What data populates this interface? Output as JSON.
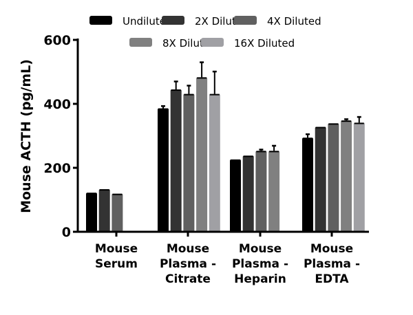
{
  "chart_data": {
    "type": "bar",
    "title": "",
    "xlabel": "",
    "ylabel": "Mouse ACTH (pg/mL)",
    "ylim": [
      0,
      600
    ],
    "yticks": [
      0,
      200,
      400,
      600
    ],
    "grid": false,
    "legend_placement": "top",
    "categories": [
      [
        "Mouse",
        "Serum"
      ],
      [
        "Mouse",
        "Plasma -",
        "Citrate"
      ],
      [
        "Mouse",
        "Plasma -",
        "Heparin"
      ],
      [
        "Mouse",
        "Plasma -",
        "EDTA"
      ]
    ],
    "series": [
      {
        "name": "Undiluted",
        "color": "#000000",
        "values": [
          122,
          386,
          226,
          294
        ],
        "errors": [
          0,
          7,
          0,
          11
        ]
      },
      {
        "name": "2X Diluted",
        "color": "#333333",
        "values": [
          133,
          445,
          238,
          328
        ],
        "errors": [
          0,
          25,
          0,
          0
        ]
      },
      {
        "name": "4X Diluted",
        "color": "#606060",
        "values": [
          119,
          431,
          253,
          339
        ],
        "errors": [
          0,
          26,
          4,
          0
        ]
      },
      {
        "name": "8X Diluted",
        "color": "#808080",
        "values": [
          null,
          483,
          253,
          348
        ],
        "errors": [
          0,
          47,
          16,
          4
        ]
      },
      {
        "name": "16X Diluted",
        "color": "#a0a0a4",
        "values": [
          null,
          431,
          null,
          341
        ],
        "errors": [
          0,
          70,
          0,
          18
        ]
      }
    ]
  }
}
